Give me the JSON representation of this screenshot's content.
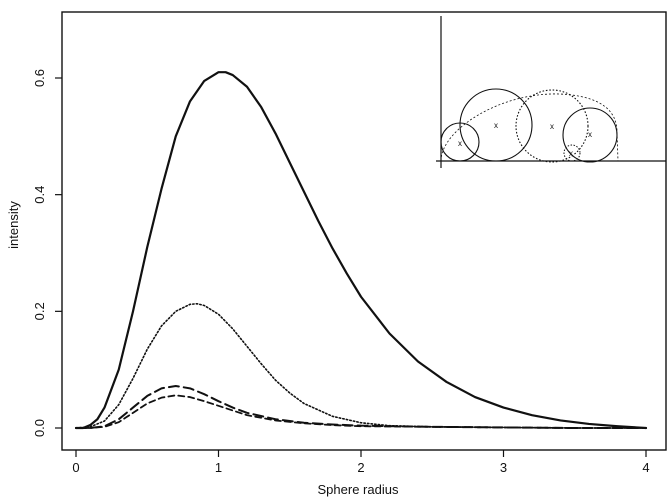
{
  "chart_data": {
    "type": "line",
    "title": "",
    "xlabel": "Sphere radius",
    "ylabel": "intensity",
    "xlim": [
      0,
      4
    ],
    "ylim": [
      0,
      0.7
    ],
    "x_ticks": [
      0,
      1,
      2,
      3,
      4
    ],
    "x_tick_labels": [
      "0",
      "1",
      "2",
      "3",
      "4"
    ],
    "y_ticks": [
      0.0,
      0.2,
      0.4,
      0.6
    ],
    "y_tick_labels": [
      "0.0",
      "0.2",
      "0.4",
      "0.6"
    ],
    "grid": false,
    "series": [
      {
        "style": "solid",
        "x": [
          0.0,
          0.05,
          0.1,
          0.15,
          0.2,
          0.3,
          0.4,
          0.5,
          0.6,
          0.7,
          0.8,
          0.9,
          1.0,
          1.05,
          1.1,
          1.2,
          1.3,
          1.4,
          1.5,
          1.6,
          1.7,
          1.8,
          1.9,
          2.0,
          2.2,
          2.4,
          2.6,
          2.8,
          3.0,
          3.2,
          3.4,
          3.6,
          3.8,
          4.0
        ],
        "y": [
          0.0,
          0.0,
          0.005,
          0.015,
          0.035,
          0.1,
          0.2,
          0.31,
          0.41,
          0.5,
          0.56,
          0.595,
          0.61,
          0.61,
          0.605,
          0.585,
          0.55,
          0.505,
          0.455,
          0.405,
          0.355,
          0.308,
          0.265,
          0.225,
          0.162,
          0.114,
          0.079,
          0.053,
          0.035,
          0.022,
          0.013,
          0.007,
          0.003,
          0.0
        ]
      },
      {
        "style": "dotted",
        "x": [
          0.0,
          0.1,
          0.2,
          0.3,
          0.4,
          0.5,
          0.6,
          0.7,
          0.8,
          0.85,
          0.9,
          1.0,
          1.1,
          1.2,
          1.3,
          1.4,
          1.5,
          1.6,
          1.8,
          2.0,
          2.2,
          2.5,
          3.0,
          3.5,
          4.0
        ],
        "y": [
          0.0,
          0.002,
          0.012,
          0.04,
          0.085,
          0.135,
          0.175,
          0.2,
          0.212,
          0.213,
          0.21,
          0.195,
          0.17,
          0.14,
          0.11,
          0.082,
          0.06,
          0.042,
          0.02,
          0.009,
          0.004,
          0.002,
          0.001,
          0.0,
          0.0
        ]
      },
      {
        "style": "long-dashed",
        "x": [
          0.0,
          0.1,
          0.2,
          0.3,
          0.4,
          0.5,
          0.6,
          0.7,
          0.8,
          0.9,
          1.0,
          1.1,
          1.2,
          1.4,
          1.6,
          1.8,
          2.0,
          2.5,
          3.0,
          3.5,
          4.0
        ],
        "y": [
          0.0,
          0.0,
          0.003,
          0.015,
          0.035,
          0.055,
          0.068,
          0.072,
          0.068,
          0.058,
          0.046,
          0.035,
          0.026,
          0.015,
          0.009,
          0.006,
          0.004,
          0.002,
          0.001,
          0.0,
          0.0
        ]
      },
      {
        "style": "dashed",
        "x": [
          0.0,
          0.1,
          0.2,
          0.3,
          0.4,
          0.5,
          0.6,
          0.7,
          0.8,
          0.9,
          1.0,
          1.1,
          1.2,
          1.4,
          1.6,
          1.8,
          2.0,
          2.5,
          3.0,
          3.5,
          4.0
        ],
        "y": [
          0.0,
          0.0,
          0.002,
          0.01,
          0.026,
          0.042,
          0.052,
          0.056,
          0.053,
          0.046,
          0.038,
          0.03,
          0.022,
          0.013,
          0.008,
          0.005,
          0.003,
          0.002,
          0.001,
          0.0,
          0.0
        ]
      }
    ],
    "inset": {
      "type": "diagram",
      "description_label": "",
      "marker": "x"
    }
  }
}
